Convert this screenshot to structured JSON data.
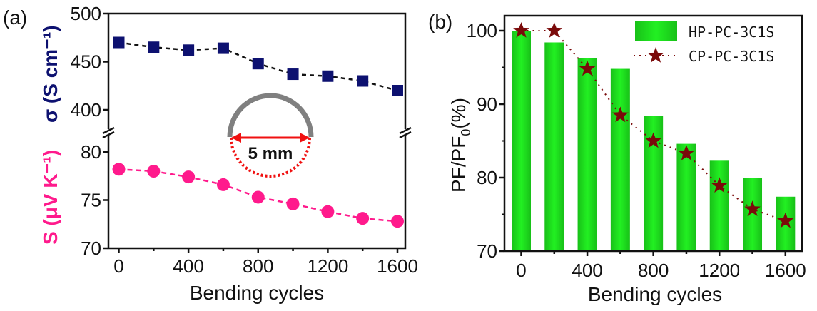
{
  "chart_data": [
    {
      "type": "scatter",
      "panel_label": "(a)",
      "xlabel": "Bending cycles",
      "x": [
        0,
        200,
        400,
        600,
        800,
        1000,
        1200,
        1400,
        1600
      ],
      "xticks": [
        "0",
        "400",
        "800",
        "1200",
        "1600"
      ],
      "xtick_values": [
        0,
        400,
        800,
        1200,
        1600
      ],
      "xlim": [
        -60,
        1660
      ],
      "upper": {
        "ylabel": "σ (S cm⁻¹)",
        "yticks": [
          "400",
          "450",
          "500"
        ],
        "ytick_values": [
          400,
          450,
          500
        ],
        "ylim": [
          391,
          500
        ],
        "color": "#0d1170",
        "marker": "square",
        "values": [
          470,
          465,
          462,
          464,
          448,
          437,
          435,
          430,
          420
        ]
      },
      "lower": {
        "ylabel": "S (μV K⁻¹)",
        "yticks": [
          "70",
          "75",
          "80"
        ],
        "ytick_values": [
          70,
          75,
          80
        ],
        "ylim": [
          70,
          82.2
        ],
        "color": "#ff1a8c",
        "marker": "circle",
        "values": [
          78.2,
          78.0,
          77.4,
          76.6,
          75.3,
          74.6,
          73.8,
          73.1,
          72.8
        ]
      },
      "annotation": "5 mm",
      "axis_break": true
    },
    {
      "type": "bar",
      "panel_label": "(b)",
      "xlabel": "Bending cycles",
      "ylabel": "PF/PF",
      "ylabel_sub": "0",
      "ylabel_suffix": "(%)",
      "x": [
        0,
        200,
        400,
        600,
        800,
        1000,
        1200,
        1400,
        1600
      ],
      "xticks": [
        "0",
        "400",
        "800",
        "1200",
        "1600"
      ],
      "xtick_values": [
        0,
        400,
        800,
        1200,
        1600
      ],
      "yticks": [
        "70",
        "80",
        "90",
        "100"
      ],
      "ytick_values": [
        70,
        80,
        90,
        100
      ],
      "ylim": [
        70,
        102.5
      ],
      "legend_position": "top-right",
      "series": [
        {
          "name": "HP-PC-3C1S",
          "type": "bar",
          "color": "#1ed31e",
          "values": [
            100,
            98.4,
            96.3,
            94.8,
            88.4,
            84.6,
            82.3,
            80.0,
            77.4
          ]
        },
        {
          "name": "CP-PC-3C1S",
          "type": "line-star",
          "color": "#7a0a0a",
          "values": [
            100,
            100,
            94.8,
            88.5,
            85.0,
            83.3,
            78.9,
            75.7,
            74.1
          ]
        }
      ]
    }
  ]
}
